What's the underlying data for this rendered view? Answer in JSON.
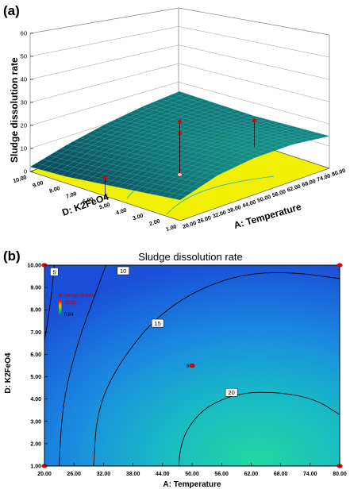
{
  "colors": {
    "contour_low": "#1a64e0",
    "contour_high": "#20d8a0",
    "base_plane": "#f0f000",
    "surface": "#0e5a6e",
    "design_point": "#e00000",
    "contour_line": "#000000",
    "surface_contour_line": "#20d0c0"
  },
  "panel_a": {
    "label": "(a)",
    "zlabel": "Sludge dissolution rate",
    "xlabel": "A: Temperature",
    "ylabel": "D: K2FeO4"
  },
  "panel_b": {
    "label": "(b)",
    "legend": {
      "title": "Design Points",
      "max": "23.51",
      "min": "0.84"
    }
  },
  "chart_data": [
    {
      "type": "surface",
      "panel": "(a)",
      "zlabel": "Sludge dissolution rate",
      "xlabel": "A: Temperature",
      "ylabel": "D: K2FeO4",
      "z_ticks": [
        "0",
        "10",
        "20",
        "30",
        "40",
        "50",
        "60"
      ],
      "x_ticks": [
        "20.00",
        "26.00",
        "32.00",
        "38.00",
        "44.00",
        "50.00",
        "56.00",
        "62.00",
        "68.00",
        "74.00",
        "80.00"
      ],
      "y_ticks": [
        "1.00",
        "2.00",
        "3.00",
        "4.00",
        "5.00",
        "6.00",
        "7.00",
        "8.00",
        "9.00",
        "10.00"
      ],
      "xlim": [
        20,
        80
      ],
      "ylim": [
        1,
        10
      ],
      "zlim": [
        0,
        60
      ],
      "surface_grid": {
        "x": [
          20,
          35,
          50,
          65,
          80
        ],
        "y": [
          1,
          3.25,
          5.5,
          7.75,
          10
        ],
        "z": [
          [
            9,
            14,
            16,
            16,
            14
          ],
          [
            7,
            12,
            15,
            15,
            13
          ],
          [
            5,
            10,
            13,
            13,
            12
          ],
          [
            3,
            8,
            11,
            12,
            12
          ],
          [
            2,
            6,
            9,
            11,
            12
          ]
        ]
      },
      "design_points": [
        {
          "x": 20,
          "y": 5.5,
          "z": 8
        },
        {
          "x": 50,
          "y": 5.5,
          "z": 16
        },
        {
          "x": 50,
          "y": 5.5,
          "z": 21
        },
        {
          "x": 80,
          "y": 5.5,
          "z": 10
        }
      ]
    },
    {
      "type": "contour",
      "panel": "(b)",
      "title": "Sludge dissolution rate",
      "xlabel": "A: Temperature",
      "ylabel": "D: K2FeO4",
      "x_ticks": [
        "20.00",
        "26.00",
        "32.00",
        "38.00",
        "44.00",
        "50.00",
        "56.00",
        "62.00",
        "68.00",
        "74.00",
        "80.00"
      ],
      "y_ticks": [
        "1.00",
        "2.00",
        "3.00",
        "4.00",
        "5.00",
        "6.00",
        "7.00",
        "8.00",
        "9.00",
        "10.00"
      ],
      "xlim": [
        20,
        80
      ],
      "ylim": [
        1,
        10
      ],
      "contour_levels": [
        {
          "label": "5",
          "points": [
            [
              22.0,
              10.0
            ],
            [
              21.6,
              9.0
            ],
            [
              21.0,
              8.0
            ],
            [
              20.3,
              7.0
            ],
            [
              20.0,
              6.6
            ]
          ],
          "label_at": [
            22.0,
            9.7
          ]
        },
        {
          "label": "10",
          "points": [
            [
              32.5,
              10.0
            ],
            [
              30.0,
              8.5
            ],
            [
              27.5,
              7.0
            ],
            [
              25.5,
              5.5
            ],
            [
              24.0,
              4.0
            ],
            [
              23.3,
              2.5
            ],
            [
              23.0,
              1.0
            ]
          ],
          "label_at": [
            36.0,
            9.75
          ]
        },
        {
          "label": "15",
          "points": [
            [
              80.0,
              9.4
            ],
            [
              70.0,
              9.7
            ],
            [
              60.0,
              9.6
            ],
            [
              50.0,
              8.8
            ],
            [
              42.0,
              7.5
            ],
            [
              36.5,
              6.0
            ],
            [
              32.5,
              4.5
            ],
            [
              30.5,
              3.0
            ],
            [
              30.0,
              1.0
            ]
          ],
          "label_at": [
            43.0,
            7.4
          ]
        },
        {
          "label": "20",
          "points": [
            [
              80.0,
              3.3
            ],
            [
              75.0,
              4.0
            ],
            [
              68.0,
              4.3
            ],
            [
              60.0,
              4.3
            ],
            [
              53.0,
              3.7
            ],
            [
              49.0,
              2.7
            ],
            [
              47.6,
              1.8
            ],
            [
              47.3,
              1.0
            ]
          ],
          "label_at": [
            58.0,
            4.3
          ]
        }
      ],
      "design_points": [
        {
          "x": 20,
          "y": 10
        },
        {
          "x": 80,
          "y": 10
        },
        {
          "x": 20,
          "y": 1
        },
        {
          "x": 80,
          "y": 1
        },
        {
          "x": 50,
          "y": 5.5,
          "label": "6"
        }
      ],
      "legend_placement": "top-left"
    }
  ]
}
